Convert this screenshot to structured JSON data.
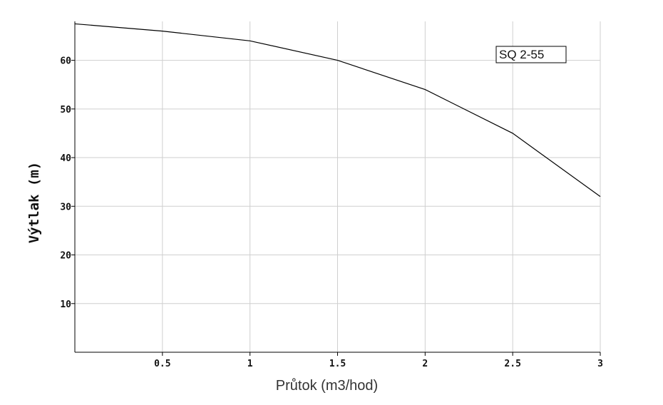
{
  "chart_data": {
    "type": "line",
    "title": "",
    "xlabel": "Průtok (m3/hod)",
    "ylabel": "Výtlak (m)",
    "xlim": [
      0,
      3
    ],
    "ylim": [
      0,
      68
    ],
    "x_ticks": [
      0.5,
      1,
      1.5,
      2,
      2.5,
      3
    ],
    "x_tick_labels": [
      "0.5",
      "1",
      "1.5",
      "2",
      "2.5",
      "3"
    ],
    "y_ticks": [
      10,
      20,
      30,
      40,
      50,
      60
    ],
    "y_tick_labels": [
      "10",
      "20",
      "30",
      "40",
      "50",
      "60"
    ],
    "grid": true,
    "legend_position": "top-right",
    "series": [
      {
        "name": "SQ 2-55",
        "color": "#000000",
        "x": [
          0,
          0.5,
          1,
          1.5,
          2,
          2.5,
          3
        ],
        "y": [
          67.5,
          66,
          64,
          60,
          54,
          45,
          32
        ]
      }
    ]
  },
  "colors": {
    "grid": "#cfcfcf",
    "axis": "#000000",
    "line": "#000000"
  }
}
